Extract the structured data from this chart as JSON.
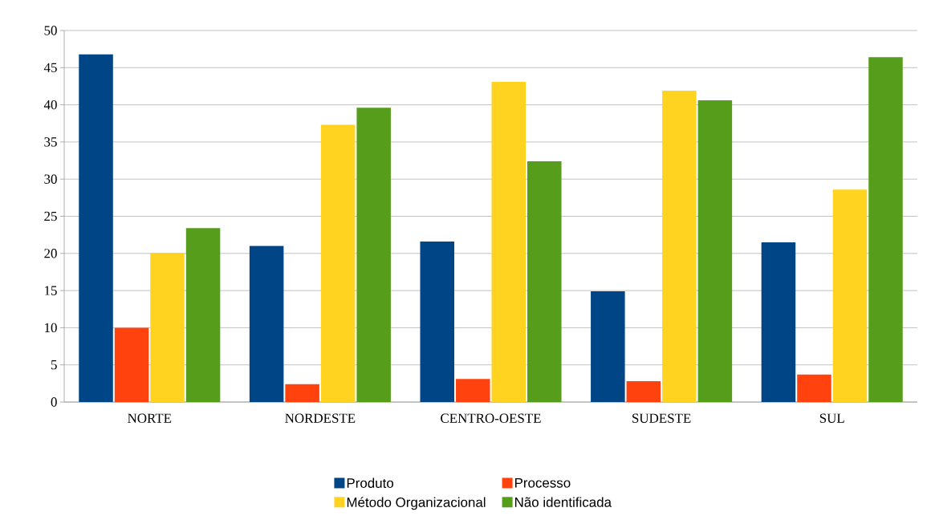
{
  "chart_data": {
    "type": "bar",
    "categories": [
      "NORTE",
      "NORDESTE",
      "CENTRO-OESTE",
      "SUDESTE",
      "SUL"
    ],
    "series": [
      {
        "name": "Produto",
        "color": "#004586",
        "values": [
          46.8,
          21.0,
          21.6,
          14.9,
          21.5
        ]
      },
      {
        "name": "Processo",
        "color": "#ff420e",
        "values": [
          10.0,
          2.4,
          3.1,
          2.8,
          3.7
        ]
      },
      {
        "name": "Método Organizacional",
        "color": "#ffd320",
        "values": [
          20.1,
          37.3,
          43.1,
          41.9,
          28.6
        ]
      },
      {
        "name": "Não identificada",
        "color": "#579d1c",
        "values": [
          23.4,
          39.6,
          32.4,
          40.6,
          46.4
        ]
      }
    ],
    "ylim": [
      0,
      50
    ],
    "yticks": [
      0,
      5,
      10,
      15,
      20,
      25,
      30,
      35,
      40,
      45,
      50
    ],
    "grid": "y",
    "legend": "bottom"
  }
}
